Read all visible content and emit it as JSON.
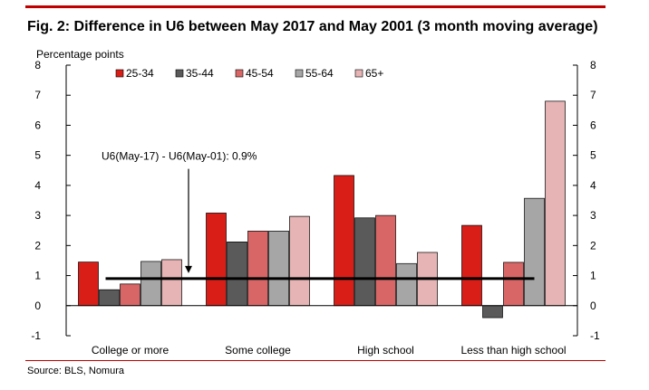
{
  "figure": {
    "title": "Fig. 2: Difference in U6 between May 2017 and May 2001 (3 month moving average)",
    "source": "Source: BLS, Nomura"
  },
  "chart_data": {
    "type": "bar",
    "title": "Fig. 2: Difference in U6 between May 2017 and May 2001 (3 month moving average)",
    "ylabel": "Percentage points",
    "xlabel": "",
    "ylim": [
      -1,
      8
    ],
    "yticks": [
      -1,
      0,
      1,
      2,
      3,
      4,
      5,
      6,
      7,
      8
    ],
    "secondary_y_axis": true,
    "legend_position": "top",
    "categories": [
      "College or more",
      "Some college",
      "High school",
      "Less than high school"
    ],
    "series": [
      {
        "name": "25-34",
        "color": "#d91e18",
        "values": [
          1.45,
          3.08,
          4.33,
          2.67
        ]
      },
      {
        "name": "35-44",
        "color": "#5a5a5a",
        "values": [
          0.53,
          2.12,
          2.92,
          -0.4
        ]
      },
      {
        "name": "45-54",
        "color": "#d96666",
        "values": [
          0.72,
          2.48,
          3.0,
          1.44
        ]
      },
      {
        "name": "55-64",
        "color": "#a6a6a6",
        "values": [
          1.47,
          2.48,
          1.4,
          3.57
        ]
      },
      {
        "name": "65+",
        "color": "#e6b4b4",
        "values": [
          1.53,
          2.97,
          1.77,
          6.8
        ]
      }
    ],
    "reference_line": {
      "value": 0.9,
      "color": "#000000"
    },
    "annotation": {
      "text": "U6(May-17) - U6(May-01): 0.9%",
      "arrow_to_value": 0.9
    }
  }
}
